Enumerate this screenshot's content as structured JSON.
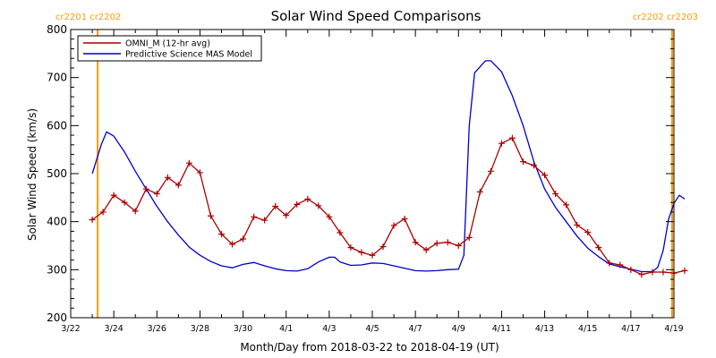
{
  "chart_data": {
    "type": "line",
    "title": "Solar Wind Speed Comparisons",
    "xlabel": "Month/Day from 2018-03-22 to 2018-04-19 (UT)",
    "ylabel": "Solar Wind Speed (km/s)",
    "xlim": [
      "2018-03-22",
      "2018-04-19"
    ],
    "ylim": [
      200,
      800
    ],
    "grid": false,
    "legend": "top-left",
    "x_ticks": [
      {
        "date": "2018-03-22",
        "label": "3/22"
      },
      {
        "date": "2018-03-24",
        "label": "3/24"
      },
      {
        "date": "2018-03-26",
        "label": "3/26"
      },
      {
        "date": "2018-03-28",
        "label": "3/28"
      },
      {
        "date": "2018-03-30",
        "label": "3/30"
      },
      {
        "date": "2018-04-01",
        "label": "4/1"
      },
      {
        "date": "2018-04-03",
        "label": "4/3"
      },
      {
        "date": "2018-04-05",
        "label": "4/5"
      },
      {
        "date": "2018-04-07",
        "label": "4/7"
      },
      {
        "date": "2018-04-09",
        "label": "4/9"
      },
      {
        "date": "2018-04-11",
        "label": "4/11"
      },
      {
        "date": "2018-04-13",
        "label": "4/13"
      },
      {
        "date": "2018-04-15",
        "label": "4/15"
      },
      {
        "date": "2018-04-17",
        "label": "4/17"
      },
      {
        "date": "2018-04-19",
        "label": "4/19"
      }
    ],
    "y_ticks": [
      200,
      300,
      400,
      500,
      600,
      700,
      800
    ],
    "rotation_markers": [
      {
        "date": "2018-03-23 06:00",
        "label": "cr2201 cr2202",
        "side": "left",
        "color": "#ff9900"
      },
      {
        "date": "2018-04-18 22:00",
        "label": "cr2202 cr2203",
        "side": "right",
        "color": "#ff9900"
      }
    ],
    "series": [
      {
        "name": "OMNI_M (12-hr avg)",
        "color": "#aa0000",
        "markers": true,
        "points": [
          [
            "2018-03-23 00:00",
            404
          ],
          [
            "2018-03-23 12:00",
            420
          ],
          [
            "2018-03-24 00:00",
            455
          ],
          [
            "2018-03-24 12:00",
            440
          ],
          [
            "2018-03-25 00:00",
            422
          ],
          [
            "2018-03-25 12:00",
            468
          ],
          [
            "2018-03-26 00:00",
            458
          ],
          [
            "2018-03-26 12:00",
            492
          ],
          [
            "2018-03-27 00:00",
            476
          ],
          [
            "2018-03-27 12:00",
            522
          ],
          [
            "2018-03-28 00:00",
            502
          ],
          [
            "2018-03-28 12:00",
            412
          ],
          [
            "2018-03-29 00:00",
            374
          ],
          [
            "2018-03-29 12:00",
            353
          ],
          [
            "2018-03-30 00:00",
            364
          ],
          [
            "2018-03-30 12:00",
            410
          ],
          [
            "2018-03-31 00:00",
            403
          ],
          [
            "2018-03-31 12:00",
            432
          ],
          [
            "2018-04-01 00:00",
            413
          ],
          [
            "2018-04-01 12:00",
            436
          ],
          [
            "2018-04-02 00:00",
            447
          ],
          [
            "2018-04-02 12:00",
            433
          ],
          [
            "2018-04-03 00:00",
            410
          ],
          [
            "2018-04-03 12:00",
            377
          ],
          [
            "2018-04-04 00:00",
            346
          ],
          [
            "2018-04-04 12:00",
            336
          ],
          [
            "2018-04-05 00:00",
            330
          ],
          [
            "2018-04-05 12:00",
            348
          ],
          [
            "2018-04-06 00:00",
            392
          ],
          [
            "2018-04-06 12:00",
            406
          ],
          [
            "2018-04-07 00:00",
            357
          ],
          [
            "2018-04-07 12:00",
            341
          ],
          [
            "2018-04-08 00:00",
            355
          ],
          [
            "2018-04-08 12:00",
            357
          ],
          [
            "2018-04-09 00:00",
            350
          ],
          [
            "2018-04-09 12:00",
            367
          ],
          [
            "2018-04-10 00:00",
            462
          ],
          [
            "2018-04-10 12:00",
            505
          ],
          [
            "2018-04-11 00:00",
            563
          ],
          [
            "2018-04-11 12:00",
            574
          ],
          [
            "2018-04-12 00:00",
            525
          ],
          [
            "2018-04-12 12:00",
            517
          ],
          [
            "2018-04-13 00:00",
            497
          ],
          [
            "2018-04-13 12:00",
            458
          ],
          [
            "2018-04-14 00:00",
            435
          ],
          [
            "2018-04-14 12:00",
            393
          ],
          [
            "2018-04-15 00:00",
            378
          ],
          [
            "2018-04-15 12:00",
            346
          ],
          [
            "2018-04-16 00:00",
            314
          ],
          [
            "2018-04-16 12:00",
            310
          ],
          [
            "2018-04-17 00:00",
            300
          ],
          [
            "2018-04-17 12:00",
            290
          ],
          [
            "2018-04-18 00:00",
            295
          ],
          [
            "2018-04-18 12:00",
            295
          ],
          [
            "2018-04-19 00:00",
            293
          ],
          [
            "2018-04-19 12:00",
            298
          ]
        ]
      },
      {
        "name": "Predictive Science MAS Model",
        "color": "#0000cc",
        "markers": false,
        "points": [
          [
            "2018-03-23 00:00",
            500
          ],
          [
            "2018-03-23 10:00",
            560
          ],
          [
            "2018-03-23 16:00",
            587
          ],
          [
            "2018-03-24 00:00",
            578
          ],
          [
            "2018-03-24 12:00",
            545
          ],
          [
            "2018-03-25 00:00",
            505
          ],
          [
            "2018-03-25 12:00",
            468
          ],
          [
            "2018-03-26 00:00",
            432
          ],
          [
            "2018-03-26 12:00",
            400
          ],
          [
            "2018-03-27 00:00",
            372
          ],
          [
            "2018-03-27 12:00",
            347
          ],
          [
            "2018-03-28 00:00",
            330
          ],
          [
            "2018-03-28 12:00",
            317
          ],
          [
            "2018-03-29 00:00",
            308
          ],
          [
            "2018-03-29 12:00",
            304
          ],
          [
            "2018-03-30 00:00",
            311
          ],
          [
            "2018-03-30 12:00",
            315
          ],
          [
            "2018-03-31 00:00",
            308
          ],
          [
            "2018-03-31 12:00",
            302
          ],
          [
            "2018-04-01 00:00",
            298
          ],
          [
            "2018-04-01 12:00",
            297
          ],
          [
            "2018-04-02 00:00",
            302
          ],
          [
            "2018-04-02 12:00",
            316
          ],
          [
            "2018-04-03 00:00",
            326
          ],
          [
            "2018-04-03 06:00",
            326
          ],
          [
            "2018-04-03 12:00",
            316
          ],
          [
            "2018-04-04 00:00",
            309
          ],
          [
            "2018-04-04 12:00",
            310
          ],
          [
            "2018-04-05 00:00",
            314
          ],
          [
            "2018-04-05 12:00",
            313
          ],
          [
            "2018-04-06 00:00",
            308
          ],
          [
            "2018-04-06 12:00",
            303
          ],
          [
            "2018-04-07 00:00",
            298
          ],
          [
            "2018-04-07 12:00",
            297
          ],
          [
            "2018-04-08 00:00",
            298
          ],
          [
            "2018-04-08 12:00",
            300
          ],
          [
            "2018-04-09 00:00",
            301
          ],
          [
            "2018-04-09 06:00",
            330
          ],
          [
            "2018-04-09 12:00",
            600
          ],
          [
            "2018-04-09 18:00",
            710
          ],
          [
            "2018-04-10 06:00",
            735
          ],
          [
            "2018-04-10 12:00",
            735
          ],
          [
            "2018-04-11 00:00",
            712
          ],
          [
            "2018-04-11 12:00",
            662
          ],
          [
            "2018-04-12 00:00",
            600
          ],
          [
            "2018-04-12 12:00",
            525
          ],
          [
            "2018-04-13 00:00",
            468
          ],
          [
            "2018-04-13 12:00",
            430
          ],
          [
            "2018-04-14 00:00",
            400
          ],
          [
            "2018-04-14 12:00",
            370
          ],
          [
            "2018-04-15 00:00",
            345
          ],
          [
            "2018-04-15 12:00",
            327
          ],
          [
            "2018-04-16 00:00",
            312
          ],
          [
            "2018-04-16 12:00",
            306
          ],
          [
            "2018-04-17 00:00",
            301
          ],
          [
            "2018-04-17 12:00",
            296
          ],
          [
            "2018-04-18 00:00",
            296
          ],
          [
            "2018-04-18 06:00",
            305
          ],
          [
            "2018-04-18 12:00",
            340
          ],
          [
            "2018-04-18 18:00",
            405
          ],
          [
            "2018-04-19 00:00",
            438
          ],
          [
            "2018-04-19 06:00",
            455
          ],
          [
            "2018-04-19 12:00",
            447
          ]
        ]
      }
    ]
  }
}
